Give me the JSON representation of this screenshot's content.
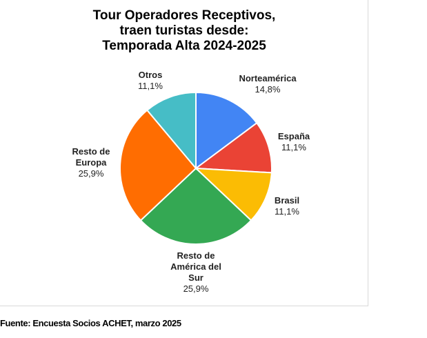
{
  "chart_data": {
    "type": "pie",
    "title": "Tour Operadores Receptivos, traen turistas desde:",
    "subtitle": "Temporada Alta 2024-2025",
    "slices": [
      {
        "label": "Norteamérica",
        "value": 14.8,
        "display": "14,8%",
        "color": "#4285F4"
      },
      {
        "label": "España",
        "value": 11.1,
        "display": "11,1%",
        "color": "#EA4335"
      },
      {
        "label": "Brasil",
        "value": 11.1,
        "display": "11,1%",
        "color": "#FBBC04"
      },
      {
        "label": "Resto de América del Sur",
        "value": 25.9,
        "display": "25,9%",
        "color": "#34A853"
      },
      {
        "label": "Resto de Europa",
        "value": 25.9,
        "display": "25,9%",
        "color": "#FF6D01"
      },
      {
        "label": "Otros",
        "value": 11.1,
        "display": "11,1%",
        "color": "#46BDC6"
      }
    ]
  },
  "source": "Fuente: Encuesta Socios ACHET, marzo 2025"
}
